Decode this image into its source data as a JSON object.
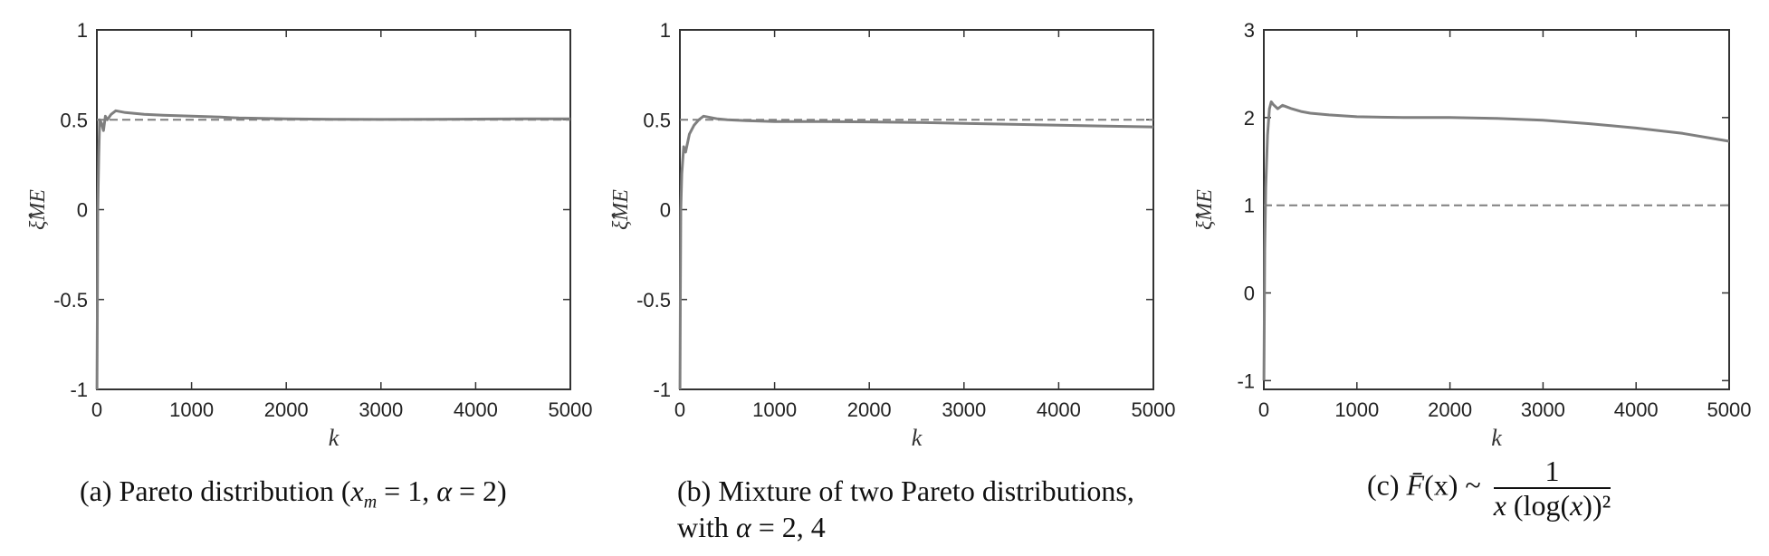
{
  "chart_data": [
    {
      "type": "line",
      "panel": "a",
      "xlabel": "k",
      "ylabel": "ξ̂ME",
      "xlim": [
        0,
        5000
      ],
      "ylim": [
        -1,
        1
      ],
      "xticks": [
        "0",
        "1000",
        "2000",
        "3000",
        "4000",
        "5000"
      ],
      "yticks": [
        "-1",
        "-0.5",
        "0",
        "0.5",
        "1"
      ],
      "series": [
        {
          "style": "solid",
          "color": "#7f7f7f",
          "x": [
            1,
            5,
            10,
            20,
            30,
            50,
            70,
            90,
            110,
            150,
            200,
            250,
            300,
            400,
            500,
            700,
            1000,
            1300,
            1500,
            2000,
            2500,
            3000,
            3500,
            4000,
            4500,
            5000
          ],
          "y": [
            -1.0,
            -0.6,
            0.0,
            0.3,
            0.5,
            0.48,
            0.44,
            0.52,
            0.5,
            0.53,
            0.55,
            0.545,
            0.54,
            0.535,
            0.53,
            0.525,
            0.52,
            0.515,
            0.51,
            0.505,
            0.503,
            0.502,
            0.503,
            0.504,
            0.505,
            0.505
          ]
        },
        {
          "style": "dashed",
          "color": "#7f7f7f",
          "x": [
            0,
            5000
          ],
          "y": [
            0.5,
            0.5
          ]
        }
      ]
    },
    {
      "type": "line",
      "panel": "b",
      "xlabel": "k",
      "ylabel": "ξ̂ME",
      "xlim": [
        0,
        5000
      ],
      "ylim": [
        -1,
        1
      ],
      "xticks": [
        "0",
        "1000",
        "2000",
        "3000",
        "4000",
        "5000"
      ],
      "yticks": [
        "-1",
        "-0.5",
        "0",
        "0.5",
        "1"
      ],
      "series": [
        {
          "style": "solid",
          "color": "#7f7f7f",
          "x": [
            1,
            5,
            10,
            20,
            40,
            60,
            100,
            150,
            200,
            250,
            300,
            400,
            500,
            700,
            1000,
            1500,
            2000,
            2500,
            3000,
            3500,
            4000,
            4500,
            5000
          ],
          "y": [
            -1.0,
            -0.5,
            0.0,
            0.2,
            0.35,
            0.32,
            0.42,
            0.47,
            0.5,
            0.52,
            0.515,
            0.505,
            0.5,
            0.495,
            0.49,
            0.49,
            0.488,
            0.485,
            0.48,
            0.475,
            0.47,
            0.465,
            0.46
          ]
        },
        {
          "style": "dashed",
          "color": "#7f7f7f",
          "x": [
            0,
            5000
          ],
          "y": [
            0.5,
            0.5
          ]
        }
      ]
    },
    {
      "type": "line",
      "panel": "c",
      "xlabel": "k",
      "ylabel": "ξ̂ME",
      "xlim": [
        0,
        5000
      ],
      "ylim": [
        -1.1,
        3
      ],
      "xticks": [
        "0",
        "1000",
        "2000",
        "3000",
        "4000",
        "5000"
      ],
      "yticks": [
        "-1",
        "0",
        "1",
        "2",
        "3"
      ],
      "series": [
        {
          "style": "solid",
          "color": "#7f7f7f",
          "x": [
            1,
            10,
            20,
            40,
            60,
            80,
            100,
            150,
            200,
            250,
            300,
            400,
            500,
            700,
            1000,
            1500,
            2000,
            2500,
            3000,
            3500,
            4000,
            4500,
            5000
          ],
          "y": [
            -1.0,
            0.5,
            1.2,
            1.8,
            2.1,
            2.18,
            2.15,
            2.1,
            2.14,
            2.12,
            2.1,
            2.07,
            2.05,
            2.03,
            2.01,
            2.0,
            2.0,
            1.99,
            1.97,
            1.93,
            1.88,
            1.82,
            1.73
          ]
        },
        {
          "style": "dashed",
          "color": "#7f7f7f",
          "x": [
            0,
            5000
          ],
          "y": [
            1,
            1
          ]
        }
      ]
    }
  ],
  "captions": {
    "a": {
      "prefix": "(a) Pareto distribution (",
      "xm": "x",
      "xm_sub": "m",
      "rest": " = 1, ",
      "alpha": "α",
      "close": " = 2)"
    },
    "b": {
      "line1": "(b) Mixture of two Pareto distributions,",
      "line2_pre": "with ",
      "alpha": "α",
      "line2_post": " = 2, 4"
    },
    "c": {
      "prefix": "(c) ",
      "Fbar": "F̄",
      "fx": "(x) ~ ",
      "num": "1",
      "den_x": "x",
      "den_rest": " (log(",
      "den_x2": "x",
      "den_close": "))²"
    }
  }
}
